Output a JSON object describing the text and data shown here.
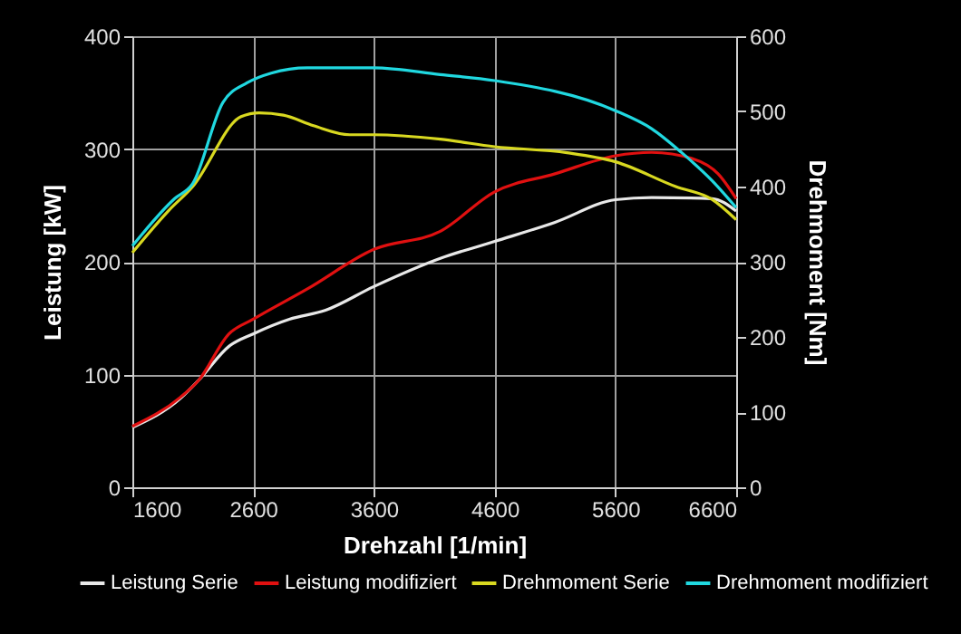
{
  "chart_data": {
    "type": "line",
    "xlabel": "Drehzahl [1/min]",
    "ylabel": "Leistung [kW]",
    "y2label": "Drehmoment [Nm]",
    "xlim": [
      1600,
      6600
    ],
    "xticks": [
      1600,
      2600,
      3600,
      4600,
      5600,
      6600
    ],
    "ylim": [
      0,
      400
    ],
    "yticks": [
      0,
      100,
      200,
      300,
      400
    ],
    "y2lim": [
      0,
      600
    ],
    "y2ticks": [
      0,
      100,
      200,
      300,
      400,
      500,
      600
    ],
    "grid": true,
    "legend": "bottom",
    "marker": "none",
    "line_style": "solid",
    "series": [
      {
        "name": "Leistung Serie",
        "color": "#e8e8e8",
        "x": [
          1600,
          2000,
          2150,
          2400,
          2600,
          2900,
          3200,
          3600,
          4150,
          4600,
          5100,
          5600,
          5900,
          6400,
          6600
        ],
        "values": [
          53,
          79,
          95,
          125,
          136,
          149,
          157,
          178,
          203,
          218,
          235,
          255,
          257,
          256,
          245
        ]
      },
      {
        "name": "Leistung modifiziert",
        "color": "#e01010",
        "x": [
          1600,
          2000,
          2150,
          2400,
          2600,
          3050,
          3600,
          4150,
          4600,
          5100,
          5600,
          5900,
          6250,
          6450,
          6600
        ],
        "values": [
          54,
          80,
          95,
          136,
          149,
          176,
          211,
          227,
          262,
          278,
          294,
          297,
          291,
          278,
          256
        ]
      },
      {
        "name": "Drehmoment Serie",
        "color": "#d8d820",
        "axis": "y2",
        "x": [
          1600,
          1900,
          2100,
          2500,
          2650,
          2850,
          3100,
          3400,
          3600,
          4150,
          4600,
          5200,
          5600,
          6100,
          6400,
          6600
        ],
        "values": [
          312,
          368,
          400,
          493,
          498,
          495,
          481,
          469,
          469,
          463,
          453,
          445,
          433,
          400,
          383,
          356
        ]
      },
      {
        "name": "Drehmoment modifiziert",
        "color": "#20d8e0",
        "axis": "y2",
        "x": [
          1600,
          1950,
          2100,
          2350,
          2550,
          2750,
          3050,
          3600,
          4150,
          4600,
          5600,
          5900,
          6150,
          6400,
          6600
        ],
        "values": [
          321,
          384,
          404,
          512,
          538,
          551,
          558,
          558,
          549,
          541,
          501,
          477,
          445,
          408,
          372
        ]
      }
    ]
  }
}
